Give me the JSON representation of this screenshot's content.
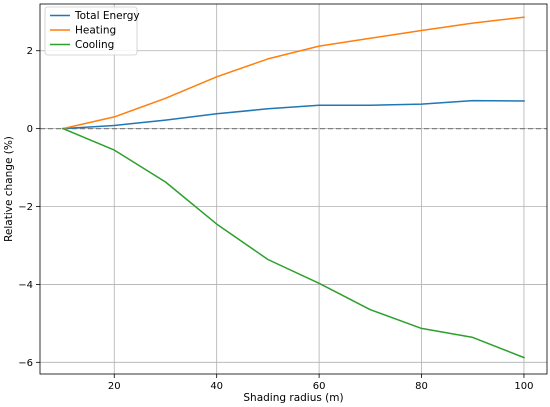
{
  "chart_data": {
    "type": "line",
    "xlabel": "Shading radius (m)",
    "ylabel": "Relative change (%)",
    "xlim": [
      5.5,
      104.5
    ],
    "ylim": [
      -6.3,
      3.2
    ],
    "xticks": [
      20,
      40,
      60,
      80,
      100
    ],
    "yticks": [
      -6,
      -4,
      -2,
      0,
      2
    ],
    "grid": true,
    "legend_position": "top-left",
    "reference_line": {
      "y": 0,
      "style": "dashed",
      "color": "#808080"
    },
    "x": [
      10,
      20,
      30,
      40,
      50,
      60,
      70,
      80,
      90,
      100
    ],
    "series": [
      {
        "name": "Total Energy",
        "color": "#1f77b4",
        "values": [
          0.0,
          0.08,
          0.22,
          0.38,
          0.51,
          0.6,
          0.6,
          0.63,
          0.72,
          0.71
        ]
      },
      {
        "name": "Heating",
        "color": "#ff7f0e",
        "values": [
          0.0,
          0.3,
          0.78,
          1.33,
          1.79,
          2.12,
          2.32,
          2.52,
          2.71,
          2.86
        ]
      },
      {
        "name": "Cooling",
        "color": "#2ca02c",
        "values": [
          0.0,
          -0.55,
          -1.37,
          -2.45,
          -3.36,
          -3.97,
          -4.65,
          -5.13,
          -5.36,
          -5.88
        ]
      }
    ]
  }
}
